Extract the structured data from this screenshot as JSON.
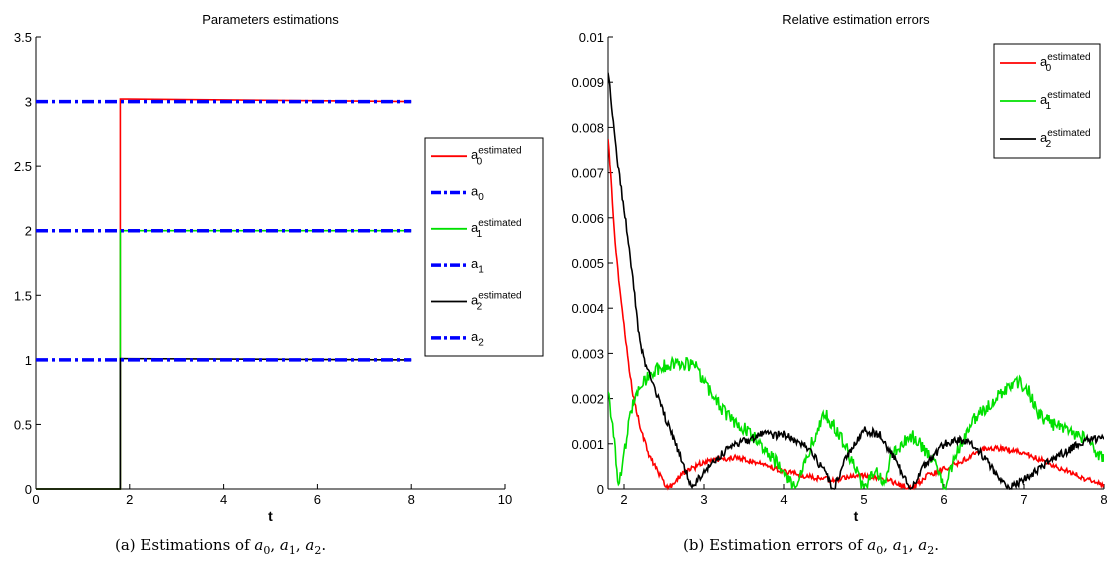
{
  "chart_data": [
    {
      "type": "line",
      "title": "Parameters estimations",
      "xlabel": "t",
      "ylabel": "",
      "xlim": [
        0,
        10
      ],
      "ylim": [
        0,
        3.5
      ],
      "xticks": [
        0,
        2,
        4,
        6,
        8,
        10
      ],
      "xtick_labels": [
        "0",
        "2",
        "4",
        "6",
        "8",
        "10"
      ],
      "yticks": [
        0,
        0.5,
        1,
        1.5,
        2,
        2.5,
        3,
        3.5
      ],
      "ytick_labels": [
        "0",
        "0.5",
        "1",
        "1.5",
        "2",
        "2.5",
        "3",
        "3.5"
      ],
      "grid": false,
      "legend_position": "right",
      "series": [
        {
          "label_base": "a",
          "label_sub": "0",
          "label_sup": "estimated",
          "color": "#ff0000",
          "style": "solid",
          "points": [
            [
              0,
              0
            ],
            [
              1.8,
              0
            ],
            [
              1.8,
              3.02
            ],
            [
              8,
              3.0
            ]
          ]
        },
        {
          "label_base": "a",
          "label_sub": "0",
          "label_sup": "",
          "color": "#0000ff",
          "style": "dashdot",
          "points": [
            [
              0,
              3
            ],
            [
              8,
              3
            ]
          ]
        },
        {
          "label_base": "a",
          "label_sub": "1",
          "label_sup": "estimated",
          "color": "#00e000",
          "style": "solid",
          "points": [
            [
              0,
              0
            ],
            [
              1.8,
              0
            ],
            [
              1.8,
              2.0
            ],
            [
              8,
              2.0
            ]
          ]
        },
        {
          "label_base": "a",
          "label_sub": "1",
          "label_sup": "",
          "color": "#0000ff",
          "style": "dashdot",
          "points": [
            [
              0,
              2
            ],
            [
              8,
              2
            ]
          ]
        },
        {
          "label_base": "a",
          "label_sub": "2",
          "label_sup": "estimated",
          "color": "#000000",
          "style": "solid",
          "points": [
            [
              0,
              0
            ],
            [
              1.8,
              0
            ],
            [
              1.8,
              1.01
            ],
            [
              8,
              1.0
            ]
          ]
        },
        {
          "label_base": "a",
          "label_sub": "2",
          "label_sup": "",
          "color": "#0000ff",
          "style": "dashdot",
          "points": [
            [
              0,
              1
            ],
            [
              8,
              1
            ]
          ]
        }
      ]
    },
    {
      "type": "line",
      "title": "Relative estimation errors",
      "xlabel": "t",
      "ylabel": "",
      "xlim": [
        1.8,
        8
      ],
      "ylim": [
        0,
        0.01
      ],
      "xticks": [
        2,
        3,
        4,
        5,
        6,
        7,
        8
      ],
      "xtick_labels": [
        "2",
        "3",
        "4",
        "5",
        "6",
        "7",
        "8"
      ],
      "yticks": [
        0,
        0.001,
        0.002,
        0.003,
        0.004,
        0.005,
        0.006,
        0.007,
        0.008,
        0.009,
        0.01
      ],
      "ytick_labels": [
        "0",
        "0.001",
        "0.002",
        "0.003",
        "0.004",
        "0.005",
        "0.006",
        "0.007",
        "0.008",
        "0.009",
        "0.01"
      ],
      "grid": false,
      "legend_position": "top-right",
      "series": [
        {
          "label_base": "a",
          "label_sub": "0",
          "label_sup": "estimated",
          "color": "#ff0000",
          "style": "solid",
          "noise": 0.00012,
          "points": [
            [
              1.8,
              0.0078
            ],
            [
              1.9,
              0.0052
            ],
            [
              2.0,
              0.0036
            ],
            [
              2.1,
              0.0022
            ],
            [
              2.2,
              0.0014
            ],
            [
              2.3,
              0.0008
            ],
            [
              2.45,
              0.0003
            ],
            [
              2.55,
              0.0
            ],
            [
              2.7,
              0.0003
            ],
            [
              3.0,
              0.0006
            ],
            [
              3.4,
              0.0007
            ],
            [
              3.8,
              0.0005
            ],
            [
              4.2,
              0.0003
            ],
            [
              4.6,
              0.0002
            ],
            [
              5.0,
              0.0003
            ],
            [
              5.3,
              0.0002
            ],
            [
              5.6,
              0.0
            ],
            [
              5.8,
              0.0003
            ],
            [
              6.2,
              0.0006
            ],
            [
              6.5,
              0.0009
            ],
            [
              6.7,
              0.0009
            ],
            [
              7.0,
              0.0008
            ],
            [
              7.4,
              0.0005
            ],
            [
              7.8,
              0.0002
            ],
            [
              8.0,
              0.0001
            ]
          ]
        },
        {
          "label_base": "a",
          "label_sub": "1",
          "label_sup": "estimated",
          "color": "#00e000",
          "style": "solid",
          "noise": 0.0003,
          "points": [
            [
              1.8,
              0.0023
            ],
            [
              1.88,
              0.001
            ],
            [
              1.93,
              0.0
            ],
            [
              2.0,
              0.0008
            ],
            [
              2.1,
              0.0018
            ],
            [
              2.25,
              0.0024
            ],
            [
              2.45,
              0.0027
            ],
            [
              2.7,
              0.0028
            ],
            [
              2.9,
              0.0027
            ],
            [
              3.05,
              0.0022
            ],
            [
              3.3,
              0.0016
            ],
            [
              3.6,
              0.0012
            ],
            [
              3.9,
              0.0006
            ],
            [
              4.15,
              0.0
            ],
            [
              4.3,
              0.0008
            ],
            [
              4.5,
              0.0017
            ],
            [
              4.7,
              0.0012
            ],
            [
              4.9,
              0.0004
            ],
            [
              5.0,
              0.0
            ],
            [
              5.15,
              0.0005
            ],
            [
              5.25,
              0.0
            ],
            [
              5.35,
              0.0008
            ],
            [
              5.6,
              0.0012
            ],
            [
              5.85,
              0.0007
            ],
            [
              6.0,
              0.0
            ],
            [
              6.15,
              0.0008
            ],
            [
              6.4,
              0.0016
            ],
            [
              6.7,
              0.0021
            ],
            [
              6.9,
              0.0024
            ],
            [
              7.05,
              0.0022
            ],
            [
              7.2,
              0.0016
            ],
            [
              7.5,
              0.0013
            ],
            [
              7.8,
              0.0011
            ],
            [
              8.0,
              0.0006
            ]
          ]
        },
        {
          "label_base": "a",
          "label_sub": "2",
          "label_sup": "estimated",
          "color": "#000000",
          "style": "solid",
          "noise": 0.00018,
          "points": [
            [
              1.8,
              0.0093
            ],
            [
              1.9,
              0.0075
            ],
            [
              2.0,
              0.0062
            ],
            [
              2.1,
              0.0048
            ],
            [
              2.2,
              0.0032
            ],
            [
              2.3,
              0.0026
            ],
            [
              2.45,
              0.0019
            ],
            [
              2.6,
              0.0012
            ],
            [
              2.75,
              0.0005
            ],
            [
              2.85,
              0.0
            ],
            [
              3.0,
              0.0004
            ],
            [
              3.3,
              0.0009
            ],
            [
              3.7,
              0.0012
            ],
            [
              4.0,
              0.0012
            ],
            [
              4.3,
              0.0009
            ],
            [
              4.5,
              0.0004
            ],
            [
              4.62,
              0.0
            ],
            [
              4.75,
              0.0006
            ],
            [
              5.0,
              0.0013
            ],
            [
              5.2,
              0.0012
            ],
            [
              5.4,
              0.0006
            ],
            [
              5.6,
              0.0
            ],
            [
              5.75,
              0.0005
            ],
            [
              6.0,
              0.001
            ],
            [
              6.3,
              0.0011
            ],
            [
              6.5,
              0.0007
            ],
            [
              6.7,
              0.0002
            ],
            [
              6.8,
              0.0
            ],
            [
              7.0,
              0.0002
            ],
            [
              7.3,
              0.0006
            ],
            [
              7.6,
              0.0009
            ],
            [
              7.8,
              0.0011
            ],
            [
              8.0,
              0.0011
            ]
          ]
        }
      ]
    }
  ],
  "captions": {
    "a": {
      "prefix": "(a) Estimations of ",
      "vars": [
        {
          "base": "a",
          "sub": "0"
        },
        {
          "base": "a",
          "sub": "1"
        },
        {
          "base": "a",
          "sub": "2"
        }
      ],
      "suffix": "."
    },
    "b": {
      "prefix": "(b) Estimation errors of ",
      "vars": [
        {
          "base": "a",
          "sub": "0"
        },
        {
          "base": "a",
          "sub": "1"
        },
        {
          "base": "a",
          "sub": "2"
        }
      ],
      "suffix": "."
    }
  }
}
